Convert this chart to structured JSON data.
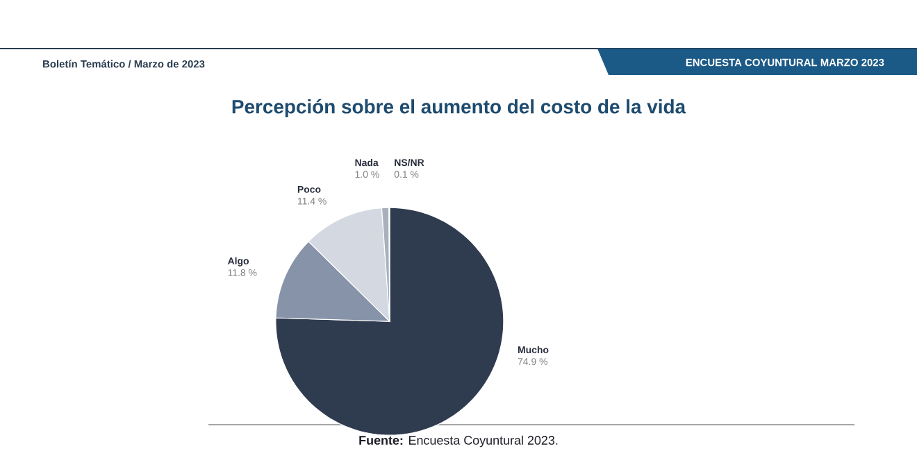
{
  "chart_data": {
    "type": "pie",
    "title": "Percepción sobre el aumento del costo de la vida",
    "categories": [
      "Mucho",
      "Algo",
      "Poco",
      "Nada",
      "NS/NR"
    ],
    "values": [
      74.9,
      11.8,
      11.4,
      1.0,
      0.1
    ],
    "value_labels": [
      "74.9 %",
      "11.8 %",
      "11.4 %",
      "1.0 %",
      "0.1 %"
    ],
    "colors": [
      "#2f3b4f",
      "#8793a9",
      "#d3d8e1",
      "#a9b0bc",
      "#eceef2"
    ],
    "annotations": [
      "Boletín Temático / Marzo de 2023",
      "ENCUESTA COYUNTURAL MARZO 2023",
      "**Fuente:** Encuesta Coyuntural 2023."
    ]
  }
}
